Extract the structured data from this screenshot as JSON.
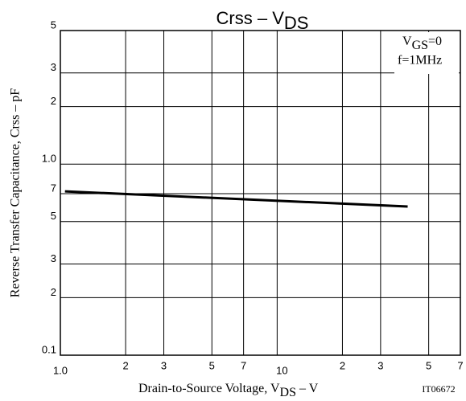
{
  "chart_data": {
    "type": "line",
    "title": [
      "Crss  –  V",
      "DS"
    ],
    "y_label": "Reverse Transfer Capacitance, Crss  –  pF",
    "x_label": [
      "Drain-to-Source Voltage, V",
      "DS",
      "  –  V"
    ],
    "annotation": [
      [
        "V",
        "GS",
        "=0"
      ],
      "f=1MHz"
    ],
    "figure_id": "IT06672",
    "log_x": true,
    "log_y": true,
    "grid": true,
    "xlim": [
      1,
      70
    ],
    "ylim": [
      0.1,
      5
    ],
    "xticks": [
      {
        "value": 1,
        "label": "1.0"
      },
      2,
      3,
      5,
      7,
      10,
      {
        "value": 20,
        "label": "2"
      },
      {
        "value": 30,
        "label": "3"
      },
      {
        "value": 50,
        "label": "5"
      },
      {
        "value": 70,
        "label": "7"
      }
    ],
    "yticks": [
      {
        "value": 0.1,
        "label": "0.1"
      },
      {
        "value": 0.2,
        "label": "2"
      },
      {
        "value": 0.3,
        "label": "3"
      },
      {
        "value": 0.5,
        "label": "5"
      },
      {
        "value": 0.7,
        "label": "7"
      },
      {
        "value": 1,
        "label": "1.0"
      },
      2,
      3,
      5
    ],
    "x": [
      1.05,
      40
    ],
    "series": [
      {
        "color": "#000000",
        "values": [
          0.72,
          0.6
        ]
      }
    ]
  }
}
